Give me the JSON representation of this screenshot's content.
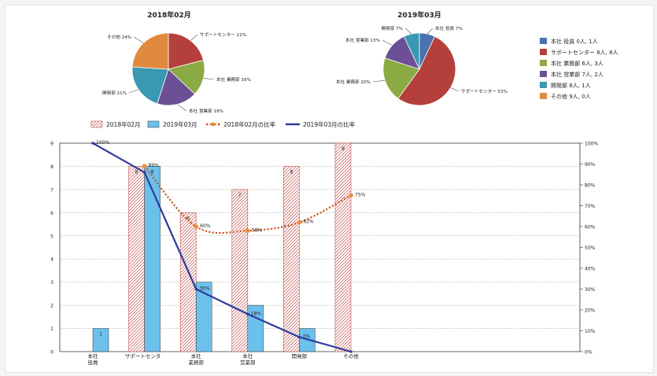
{
  "pie_legend": [
    {
      "label": "本社 役員 0人, 1人",
      "color": "#4a72b0"
    },
    {
      "label": "サポートセンター 8人, 8人",
      "color": "#b5403b"
    },
    {
      "label": "本社 業務部 6人, 3人",
      "color": "#8aab43"
    },
    {
      "label": "本社 営業部 7人, 2人",
      "color": "#6c4f95"
    },
    {
      "label": "開発部 8人, 1人",
      "color": "#3a99b2"
    },
    {
      "label": "その他 9人, 0人",
      "color": "#e08a3e"
    }
  ],
  "bar_legend": {
    "s1": "2018年02月",
    "s2": "2019年03月",
    "s3": "2018年02月の比率",
    "s4": "2019年03月の比率"
  },
  "chart_data": [
    {
      "type": "pie",
      "title": "2018年02月",
      "slices": [
        {
          "label": "サポートセンター",
          "value": 21,
          "color": "#b5403b"
        },
        {
          "label": "本社 業務部",
          "value": 16,
          "color": "#8aab43"
        },
        {
          "label": "本社 営業部",
          "value": 18,
          "color": "#6c4f95"
        },
        {
          "label": "開発部",
          "value": 21,
          "color": "#3a99b2"
        },
        {
          "label": "その他",
          "value": 24,
          "color": "#e08a3e"
        }
      ],
      "slice_labels": [
        "サポートセンター 21%",
        "本社 業務部 16%",
        "本社 営業部 18%",
        "開発部 21%",
        "その他 24%"
      ]
    },
    {
      "type": "pie",
      "title": "2019年03月",
      "slices": [
        {
          "label": "本社 役員",
          "value": 7,
          "color": "#4a72b0"
        },
        {
          "label": "サポートセンター",
          "value": 53,
          "color": "#b5403b"
        },
        {
          "label": "本社 業務部",
          "value": 20,
          "color": "#8aab43"
        },
        {
          "label": "本社 営業部",
          "value": 13,
          "color": "#6c4f95"
        },
        {
          "label": "開発部",
          "value": 7,
          "color": "#3a99b2"
        }
      ],
      "slice_labels": [
        "本社 役員 7%",
        "サポートセンター 53%",
        "本社 業務部 20%",
        "本社 営業部 13%",
        "開発部 7%"
      ]
    },
    {
      "type": "bar",
      "categories": [
        [
          "本社",
          "役員"
        ],
        [
          "サポートセンタ"
        ],
        [
          "本社",
          "業務部"
        ],
        [
          "本社",
          "営業部"
        ],
        [
          "開発部"
        ],
        [
          "その他"
        ]
      ],
      "ylim": [
        0,
        9
      ],
      "yticks": [
        "0",
        "1",
        "2",
        "3",
        "4",
        "5",
        "6",
        "7",
        "8",
        "9"
      ],
      "y2lim": [
        0,
        100
      ],
      "y2ticks": [
        "0%",
        "10%",
        "20%",
        "30%",
        "40%",
        "50%",
        "60%",
        "70%",
        "80%",
        "90%",
        "100%"
      ],
      "series": [
        {
          "name": "2018年02月",
          "kind": "bar",
          "values": [
            0,
            8,
            6,
            7,
            8,
            9
          ],
          "labels": [
            "",
            "8",
            "6",
            "7",
            "8",
            "9"
          ],
          "color": "#c0504d"
        },
        {
          "name": "2019年03月",
          "kind": "bar",
          "values": [
            1,
            8,
            3,
            2,
            1,
            0
          ],
          "labels": [
            "1",
            "8",
            "",
            "",
            "",
            ""
          ],
          "color": "#6cc0ec"
        },
        {
          "name": "2018年02月の比率",
          "kind": "line",
          "axis": "right",
          "values": [
            null,
            89,
            60,
            58,
            62,
            75
          ],
          "labels": [
            "",
            "89%",
            "60%",
            "58%",
            "62%",
            "75%"
          ],
          "color": "#cc5522"
        },
        {
          "name": "2019年03月の比率",
          "kind": "line",
          "axis": "right",
          "values": [
            100,
            86,
            30,
            18,
            7,
            0
          ],
          "labels": [
            "100%",
            "",
            "30%",
            "18%",
            "7%",
            ""
          ],
          "color": "#2e3a9a"
        }
      ]
    }
  ]
}
